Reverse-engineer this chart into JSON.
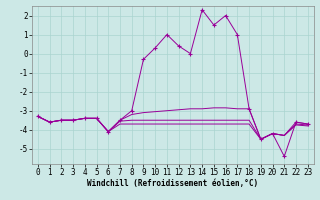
{
  "background_color": "#cce8e6",
  "grid_color": "#aad4d0",
  "line_color": "#990099",
  "x_values": [
    0,
    1,
    2,
    3,
    4,
    5,
    6,
    7,
    8,
    9,
    10,
    11,
    12,
    13,
    14,
    15,
    16,
    17,
    18,
    19,
    20,
    21,
    22,
    23
  ],
  "series1": [
    -3.3,
    -3.6,
    -3.5,
    -3.5,
    -3.4,
    -3.4,
    -4.1,
    -3.5,
    -3.0,
    -0.3,
    0.3,
    1.0,
    0.4,
    0.0,
    2.3,
    1.5,
    2.0,
    1.0,
    -2.9,
    -4.5,
    -4.2,
    -5.4,
    -3.6,
    -3.7
  ],
  "series2": [
    -3.3,
    -3.6,
    -3.5,
    -3.5,
    -3.4,
    -3.4,
    -4.1,
    -3.5,
    -3.2,
    -3.1,
    -3.05,
    -3.0,
    -2.95,
    -2.9,
    -2.9,
    -2.85,
    -2.85,
    -2.9,
    -2.9,
    -4.5,
    -4.2,
    -4.3,
    -3.6,
    -3.7
  ],
  "series3": [
    -3.3,
    -3.6,
    -3.5,
    -3.5,
    -3.4,
    -3.4,
    -4.1,
    -3.55,
    -3.5,
    -3.5,
    -3.5,
    -3.5,
    -3.5,
    -3.5,
    -3.5,
    -3.5,
    -3.5,
    -3.5,
    -3.5,
    -4.5,
    -4.2,
    -4.3,
    -3.7,
    -3.75
  ],
  "series4": [
    -3.3,
    -3.6,
    -3.5,
    -3.5,
    -3.4,
    -3.4,
    -4.1,
    -3.7,
    -3.7,
    -3.7,
    -3.7,
    -3.7,
    -3.7,
    -3.7,
    -3.7,
    -3.7,
    -3.7,
    -3.7,
    -3.7,
    -4.5,
    -4.2,
    -4.3,
    -3.75,
    -3.8
  ],
  "xlabel": "Windchill (Refroidissement éolien,°C)",
  "xlim": [
    -0.5,
    23.5
  ],
  "ylim": [
    -5.8,
    2.5
  ],
  "yticks": [
    -5,
    -4,
    -3,
    -2,
    -1,
    0,
    1,
    2
  ],
  "xticks": [
    0,
    1,
    2,
    3,
    4,
    5,
    6,
    7,
    8,
    9,
    10,
    11,
    12,
    13,
    14,
    15,
    16,
    17,
    18,
    19,
    20,
    21,
    22,
    23
  ]
}
